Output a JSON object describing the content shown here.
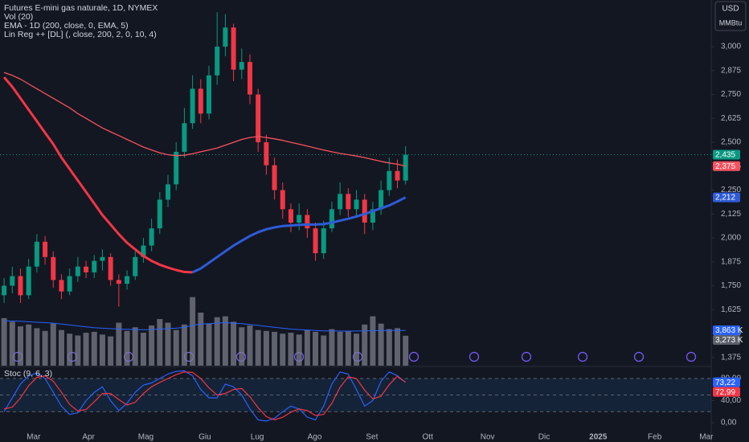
{
  "chart_data": [
    {
      "type": "candlestick",
      "title": "Futures E-mini gas naturale, 1D, NYMEX",
      "currency": "USD",
      "unit": "MMBtu",
      "open": [
        1700,
        1750,
        1800,
        1700,
        1850,
        1980,
        1900,
        1780,
        1720,
        1800,
        1850,
        1820,
        1880,
        1900,
        1780,
        1760,
        1800,
        1900,
        1960,
        2050,
        2200,
        2280,
        2450,
        2600,
        2780,
        2650,
        2850,
        3000,
        3100,
        2880,
        2920,
        2750,
        2500,
        2380,
        2250,
        2150,
        2080,
        2120,
        2050,
        1920,
        2050,
        2150,
        2230,
        2150,
        2200,
        2080,
        2150,
        2250,
        2350,
        2300
      ],
      "high": [
        1790,
        1850,
        1840,
        1890,
        2020,
        2010,
        1930,
        1810,
        1840,
        1900,
        1880,
        1910,
        1940,
        1920,
        1810,
        1830,
        1930,
        2000,
        2100,
        2240,
        2330,
        2500,
        2680,
        2850,
        2830,
        2900,
        3180,
        3170,
        3120,
        2990,
        2960,
        2780,
        2540,
        2420,
        2290,
        2180,
        2180,
        2150,
        2080,
        2090,
        2190,
        2290,
        2260,
        2250,
        2230,
        2190,
        2300,
        2420,
        2410,
        2480
      ],
      "low": [
        1660,
        1710,
        1660,
        1680,
        1820,
        1860,
        1740,
        1680,
        1700,
        1770,
        1790,
        1790,
        1830,
        1750,
        1640,
        1730,
        1780,
        1870,
        1930,
        2020,
        2160,
        2250,
        2420,
        2570,
        2600,
        2620,
        2800,
        2950,
        2820,
        2830,
        2700,
        2450,
        2330,
        2200,
        2100,
        2030,
        2040,
        2000,
        1880,
        1890,
        2030,
        2120,
        2110,
        2110,
        2020,
        2040,
        2120,
        2220,
        2260,
        2280
      ],
      "close": [
        1750,
        1800,
        1700,
        1850,
        1980,
        1900,
        1780,
        1720,
        1800,
        1850,
        1820,
        1880,
        1900,
        1780,
        1760,
        1800,
        1900,
        1960,
        2050,
        2200,
        2280,
        2450,
        2600,
        2780,
        2650,
        2850,
        3000,
        3100,
        2880,
        2920,
        2750,
        2500,
        2380,
        2250,
        2150,
        2080,
        2120,
        2050,
        1920,
        2050,
        2150,
        2230,
        2150,
        2200,
        2080,
        2150,
        2250,
        2350,
        2300,
        2435
      ],
      "last_label": "2,435",
      "up_color": "#089981",
      "down_color": "#f23645",
      "ylim": [
        1332,
        3244
      ],
      "yticks": [
        {
          "value": 1375,
          "label": "1,375"
        },
        {
          "value": 1500,
          "label": "1,500"
        },
        {
          "value": 1625,
          "label": "1,625"
        },
        {
          "value": 1750,
          "label": "1,750"
        },
        {
          "value": 1875,
          "label": "1,875"
        },
        {
          "value": 2000,
          "label": "2,000"
        },
        {
          "value": 2125,
          "label": "2,125"
        },
        {
          "value": 2250,
          "label": "2,250"
        },
        {
          "value": 2375,
          "label": "2,375"
        },
        {
          "value": 2500,
          "label": "2,500"
        },
        {
          "value": 2625,
          "label": "2,625"
        },
        {
          "value": 2750,
          "label": "2,750"
        },
        {
          "value": 2875,
          "label": "2,875"
        },
        {
          "value": 3000,
          "label": "3,000"
        }
      ],
      "xlim": [
        0,
        86.8
      ],
      "xticks": [
        {
          "value": 4.1,
          "label": "Mar"
        },
        {
          "value": 10.8,
          "label": "Apr"
        },
        {
          "value": 17.8,
          "label": "Mag"
        },
        {
          "value": 25,
          "label": "Giu"
        },
        {
          "value": 31.4,
          "label": "Lug"
        },
        {
          "value": 38.4,
          "label": "Ago"
        },
        {
          "value": 45.4,
          "label": "Set"
        },
        {
          "value": 52.2,
          "label": "Ott"
        },
        {
          "value": 59.5,
          "label": "Nov"
        },
        {
          "value": 66.4,
          "label": "Dic"
        },
        {
          "value": 73,
          "label": "2025"
        },
        {
          "value": 79.9,
          "label": "Feb"
        },
        {
          "value": 86.2,
          "label": "Mar"
        }
      ],
      "series": [
        {
          "name": "EMA - 1D (200, close, 0, EMA, 5)",
          "color": "#f7525f",
          "last_label": "2,375",
          "values": [
            2865,
            2850,
            2830,
            2805,
            2780,
            2755,
            2730,
            2705,
            2680,
            2650,
            2625,
            2600,
            2575,
            2555,
            2535,
            2515,
            2495,
            2475,
            2460,
            2445,
            2435,
            2430,
            2432,
            2440,
            2450,
            2460,
            2470,
            2485,
            2500,
            2515,
            2525,
            2530,
            2525,
            2518,
            2510,
            2500,
            2490,
            2480,
            2470,
            2460,
            2450,
            2442,
            2435,
            2428,
            2420,
            2410,
            2400,
            2392,
            2385,
            2375
          ]
        },
        {
          "name": "Lin Reg ++ [DL] (, close, 200, 2, 0, 10, 4)",
          "down_color": "#f23645",
          "up_color": "#2e5bd8",
          "last_label": "2,212",
          "values": [
            2840,
            2790,
            2730,
            2670,
            2610,
            2550,
            2490,
            2420,
            2360,
            2300,
            2240,
            2180,
            2120,
            2070,
            2020,
            1975,
            1940,
            1905,
            1880,
            1860,
            1845,
            1832,
            1822,
            1820,
            1840,
            1870,
            1900,
            1930,
            1960,
            1985,
            2010,
            2030,
            2045,
            2055,
            2062,
            2065,
            2068,
            2070,
            2070,
            2072,
            2080,
            2090,
            2100,
            2112,
            2125,
            2140,
            2155,
            2170,
            2190,
            2212
          ]
        }
      ],
      "volume": {
        "name": "Vol (20)",
        "color": "#7b7e88",
        "ylim": [
          0,
          40000
        ],
        "last_label": "3,273 K",
        "values": [
          5200,
          4800,
          4300,
          4500,
          4100,
          3800,
          4600,
          3900,
          3500,
          3300,
          3600,
          3700,
          3400,
          3200,
          4700,
          3800,
          4200,
          3600,
          4400,
          5100,
          4700,
          3900,
          4500,
          7500,
          5800,
          4600,
          5300,
          5400,
          4800,
          4200,
          4400,
          3900,
          3800,
          3700,
          3500,
          3600,
          3400,
          3900,
          3700,
          3300,
          4000,
          3700,
          3800,
          3500,
          4500,
          5400,
          4600,
          4000,
          4100,
          3273
        ],
        "ma": {
          "color": "#2962ff",
          "last_label": "3,863 K",
          "values": [
            4900,
            4880,
            4850,
            4800,
            4750,
            4700,
            4650,
            4550,
            4450,
            4350,
            4250,
            4150,
            4100,
            4050,
            4000,
            3980,
            3950,
            3930,
            3950,
            4000,
            4050,
            4100,
            4200,
            4400,
            4550,
            4600,
            4650,
            4700,
            4650,
            4600,
            4500,
            4400,
            4300,
            4200,
            4100,
            4000,
            3950,
            3900,
            3850,
            3800,
            3800,
            3780,
            3780,
            3790,
            3800,
            3830,
            3850,
            3860,
            3860,
            3863
          ]
        }
      }
    },
    {
      "type": "line",
      "title": "Stoc (9, 6, 3)",
      "ylim": [
        -20.4,
        93.1
      ],
      "yticks": [
        {
          "value": 80,
          "label": "80,00"
        },
        {
          "value": 40,
          "label": "40,00"
        },
        {
          "value": 0,
          "label": "0,00"
        }
      ],
      "levels": [
        80,
        50,
        20
      ],
      "band": [
        20,
        80
      ],
      "series": [
        {
          "color": "#2962ff",
          "last_label": "73,22",
          "values": [
            20,
            45,
            70,
            85,
            90,
            80,
            55,
            30,
            15,
            18,
            40,
            55,
            65,
            40,
            22,
            35,
            55,
            68,
            72,
            80,
            88,
            93,
            94,
            85,
            60,
            45,
            45,
            70,
            65,
            50,
            25,
            5,
            3,
            8,
            20,
            30,
            25,
            10,
            5,
            30,
            70,
            92,
            88,
            60,
            30,
            40,
            75,
            92,
            85,
            73.22
          ]
        },
        {
          "color": "#f23645",
          "last_label": "72,99",
          "values": [
            25,
            28,
            45,
            67,
            82,
            85,
            75,
            55,
            33,
            21,
            24,
            38,
            53,
            53,
            42,
            32,
            37,
            53,
            65,
            73,
            80,
            87,
            92,
            91,
            80,
            63,
            50,
            53,
            60,
            62,
            47,
            27,
            11,
            5,
            10,
            19,
            25,
            22,
            13,
            15,
            35,
            64,
            83,
            80,
            59,
            43,
            48,
            69,
            84,
            72.99
          ]
        }
      ]
    }
  ]
}
